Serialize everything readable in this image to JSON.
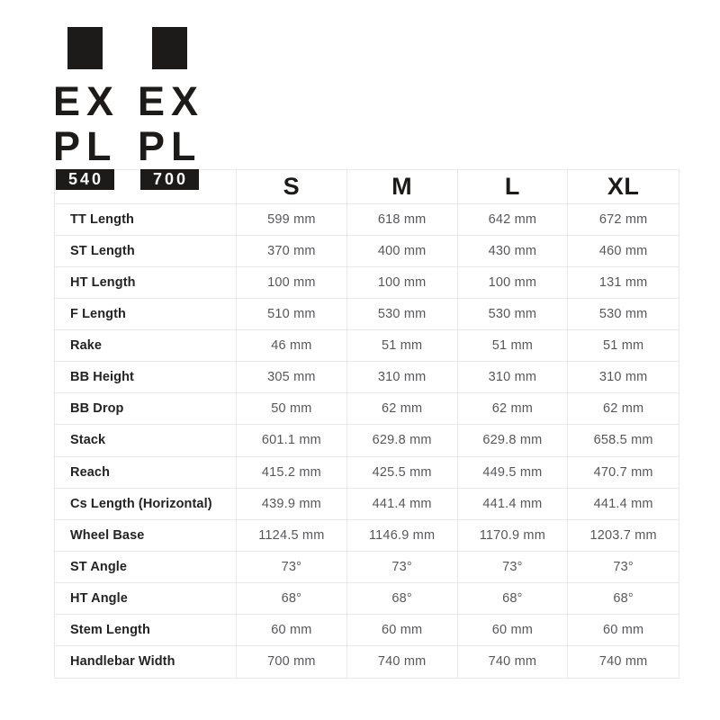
{
  "brand": {
    "logos": [
      {
        "line1": "EX",
        "line2": "PL",
        "badge": "540"
      },
      {
        "line1": "EX",
        "line2": "PL",
        "badge": "700"
      }
    ]
  },
  "chart_data": {
    "type": "table",
    "columns": [
      "S",
      "M",
      "L",
      "XL"
    ],
    "rows": [
      {
        "label": "TT Length",
        "values": [
          "599 mm",
          "618 mm",
          "642 mm",
          "672 mm"
        ]
      },
      {
        "label": "ST Length",
        "values": [
          "370 mm",
          "400 mm",
          "430 mm",
          "460 mm"
        ]
      },
      {
        "label": "HT Length",
        "values": [
          "100 mm",
          "100 mm",
          "100 mm",
          "131 mm"
        ]
      },
      {
        "label": "F Length",
        "values": [
          "510 mm",
          "530 mm",
          "530 mm",
          "530 mm"
        ]
      },
      {
        "label": "Rake",
        "values": [
          "46 mm",
          "51 mm",
          "51 mm",
          "51 mm"
        ]
      },
      {
        "label": "BB Height",
        "values": [
          "305 mm",
          "310 mm",
          "310 mm",
          "310 mm"
        ]
      },
      {
        "label": "BB Drop",
        "values": [
          "50 mm",
          "62 mm",
          "62 mm",
          "62 mm"
        ]
      },
      {
        "label": "Stack",
        "values": [
          "601.1 mm",
          "629.8 mm",
          "629.8 mm",
          "658.5 mm"
        ]
      },
      {
        "label": "Reach",
        "values": [
          "415.2 mm",
          "425.5 mm",
          "449.5 mm",
          "470.7 mm"
        ]
      },
      {
        "label": "Cs Length (Horizontal)",
        "values": [
          "439.9 mm",
          "441.4 mm",
          "441.4 mm",
          "441.4 mm"
        ]
      },
      {
        "label": "Wheel Base",
        "values": [
          "1124.5 mm",
          "1146.9 mm",
          "1170.9 mm",
          "1203.7 mm"
        ]
      },
      {
        "label": "ST Angle",
        "values": [
          "73°",
          "73°",
          "73°",
          "73°"
        ]
      },
      {
        "label": "HT Angle",
        "values": [
          "68°",
          "68°",
          "68°",
          "68°"
        ]
      },
      {
        "label": "Stem Length",
        "values": [
          "60 mm",
          "60 mm",
          "60 mm",
          "60 mm"
        ]
      },
      {
        "label": "Handlebar Width",
        "values": [
          "700 mm",
          "740 mm",
          "740 mm",
          "740 mm"
        ]
      }
    ]
  },
  "colors": {
    "ink": "#1d1b1a",
    "label_text": "#232323",
    "value_text": "#57575a",
    "grid_line": "#e8e8ea",
    "badge_text": "#ffffff",
    "page_bg": "#ffffff"
  }
}
